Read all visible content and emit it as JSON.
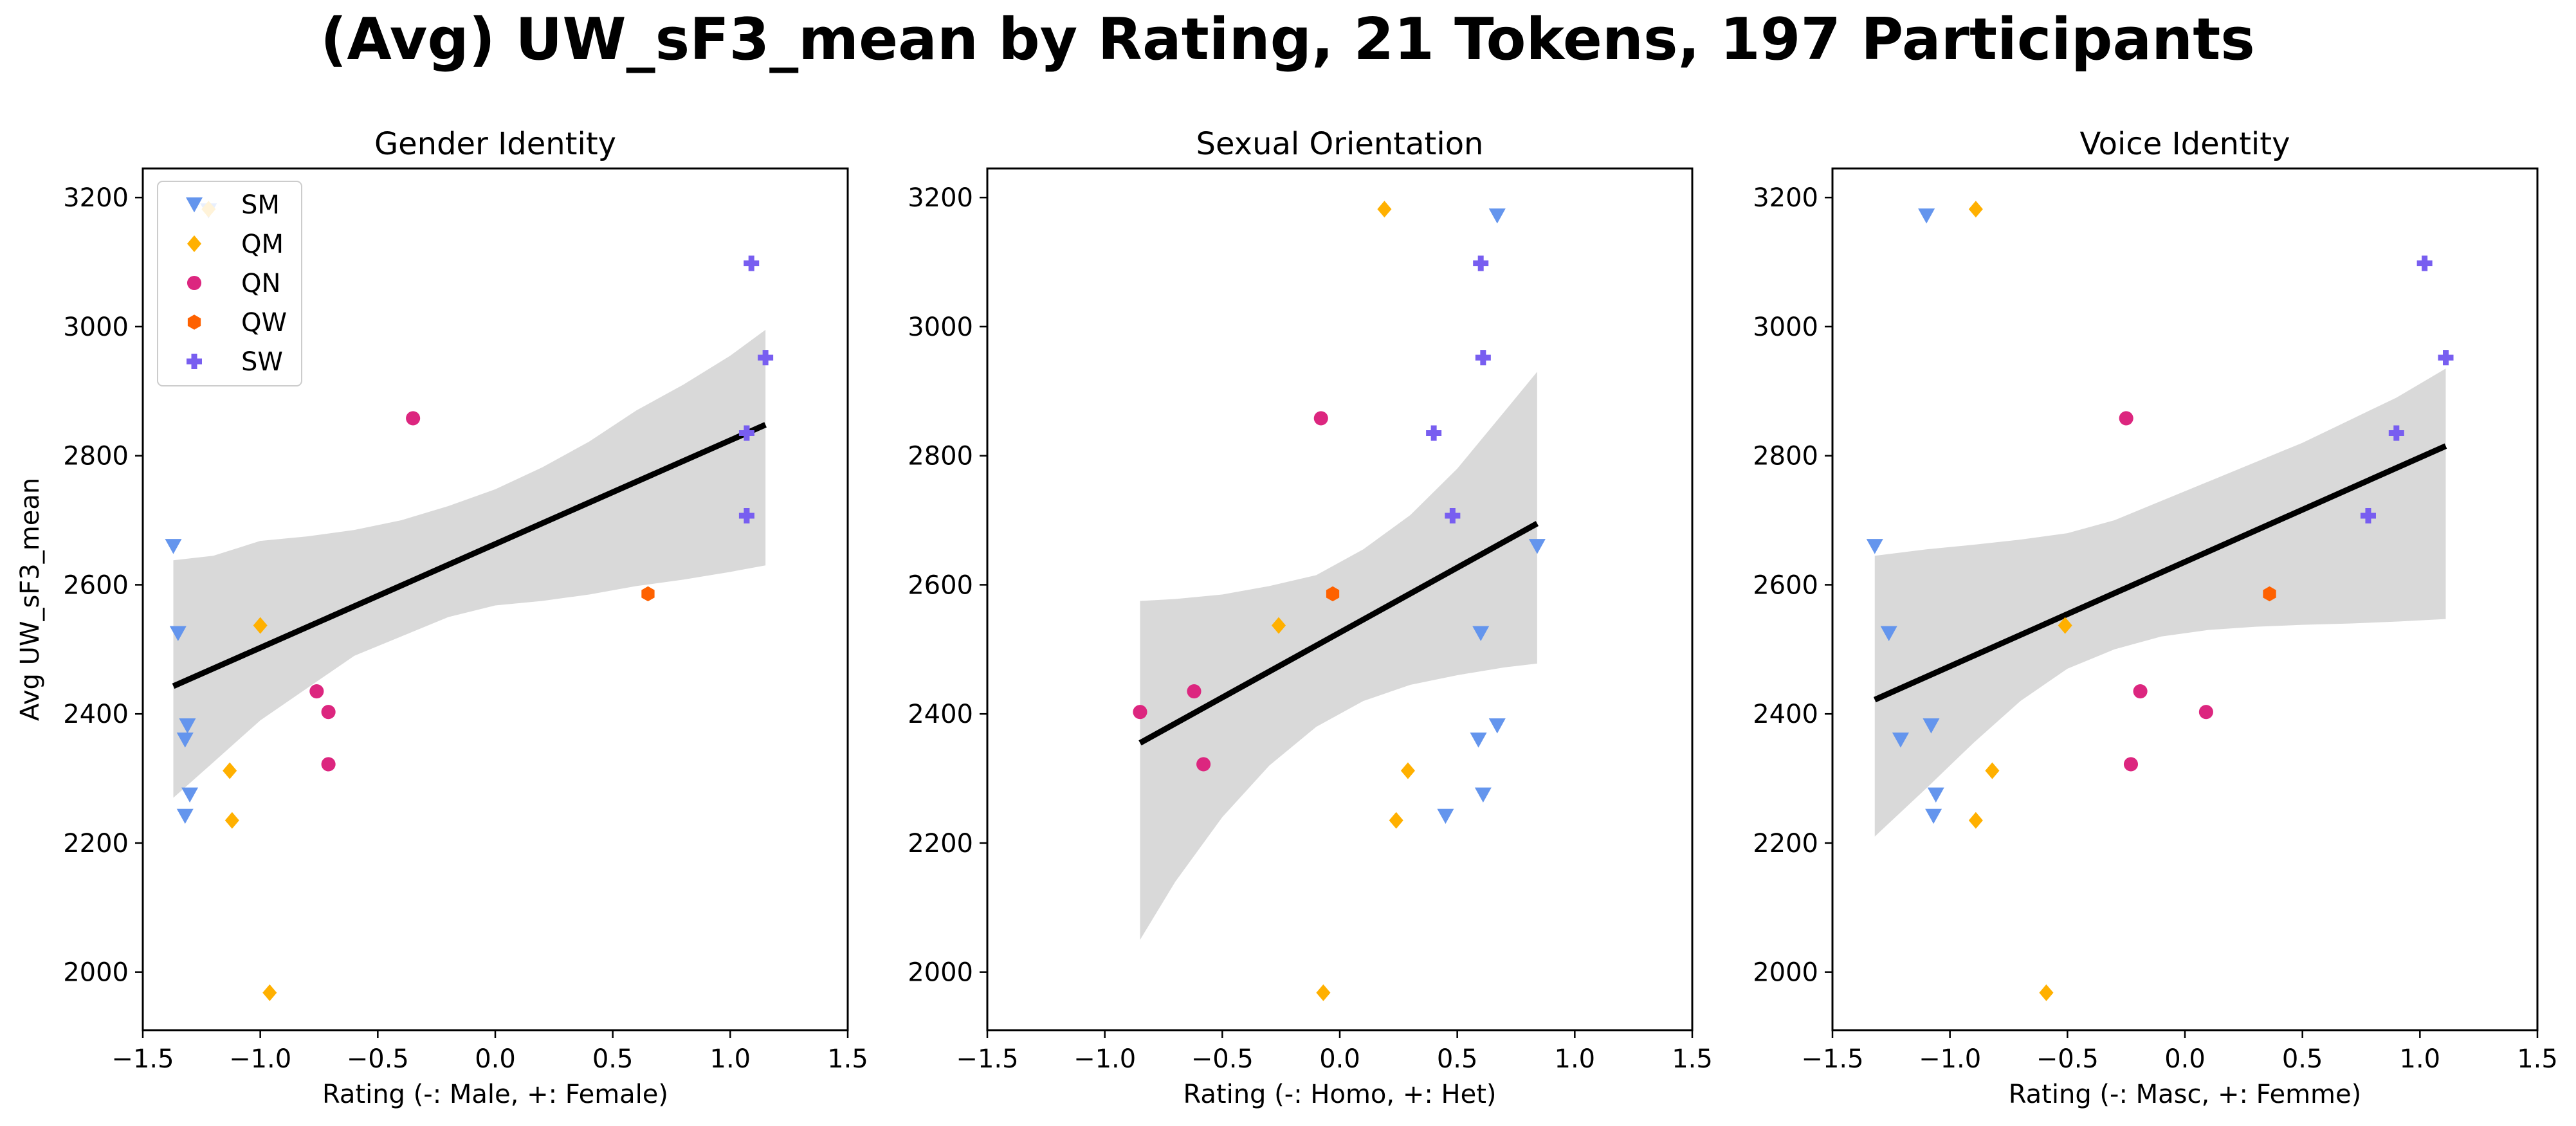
{
  "figure": {
    "title": "(Avg) UW_sF3_mean by Rating, 21 Tokens, 197 Participants"
  },
  "styles": {
    "SM": {
      "color": "#6495ED",
      "marker": "triangle-down"
    },
    "QM": {
      "color": "#FFB000",
      "marker": "diamond"
    },
    "QN": {
      "color": "#DC267F",
      "marker": "circle"
    },
    "QW": {
      "color": "#FE6100",
      "marker": "hexagon"
    },
    "SW": {
      "color": "#785EF0",
      "marker": "plus"
    },
    "regression_line": "#000000",
    "confidence_band": "#D9D9D9"
  },
  "legend": {
    "placement": "top-left",
    "panel": 0,
    "entries": [
      "SM",
      "QM",
      "QN",
      "QW",
      "SW"
    ]
  },
  "chart_data": [
    {
      "type": "scatter",
      "title": "Gender Identity",
      "xlabel": "Rating (-: Male, +: Female)",
      "ylabel": "Avg UW_sF3_mean",
      "xlim": [
        -1.5,
        1.5
      ],
      "ylim": [
        1910,
        3245
      ],
      "xticks": [
        "−1.5",
        "−1.0",
        "−0.5",
        "0.0",
        "0.5",
        "1.0",
        "1.5"
      ],
      "xtick_values": [
        -1.5,
        -1.0,
        -0.5,
        0.0,
        0.5,
        1.0,
        1.5
      ],
      "yticks": [
        "2000",
        "2200",
        "2400",
        "2600",
        "2800",
        "3000",
        "3200"
      ],
      "ytick_values": [
        2000,
        2200,
        2400,
        2600,
        2800,
        3000,
        3200
      ],
      "series": [
        {
          "name": "SM",
          "points": [
            [
              -1.37,
              2660
            ],
            [
              -1.35,
              2525
            ],
            [
              -1.31,
              2382
            ],
            [
              -1.32,
              2360
            ],
            [
              -1.3,
              2275
            ],
            [
              -1.32,
              2242
            ],
            [
              -1.22,
              3180
            ]
          ]
        },
        {
          "name": "QM",
          "points": [
            [
              -1.0,
              2537
            ],
            [
              -1.13,
              2312
            ],
            [
              -1.12,
              2235
            ],
            [
              -0.96,
              1968
            ],
            [
              -1.22,
              3182
            ]
          ]
        },
        {
          "name": "QN",
          "points": [
            [
              -0.35,
              2858
            ],
            [
              -0.76,
              2435
            ],
            [
              -0.71,
              2403
            ],
            [
              -0.71,
              2322
            ]
          ]
        },
        {
          "name": "QW",
          "points": [
            [
              0.65,
              2586
            ]
          ]
        },
        {
          "name": "SW",
          "points": [
            [
              1.09,
              3098
            ],
            [
              1.15,
              2952
            ],
            [
              1.07,
              2835
            ],
            [
              1.07,
              2707
            ]
          ]
        }
      ],
      "regression": {
        "x": [
          -1.37,
          1.15
        ],
        "y": [
          2443,
          2848
        ]
      },
      "ci_upper": [
        [
          -1.37,
          2638
        ],
        [
          -1.2,
          2645
        ],
        [
          -1.0,
          2668
        ],
        [
          -0.8,
          2675
        ],
        [
          -0.6,
          2685
        ],
        [
          -0.4,
          2700
        ],
        [
          -0.2,
          2722
        ],
        [
          0.0,
          2748
        ],
        [
          0.2,
          2782
        ],
        [
          0.4,
          2822
        ],
        [
          0.6,
          2870
        ],
        [
          0.8,
          2910
        ],
        [
          1.0,
          2955
        ],
        [
          1.15,
          2995
        ]
      ],
      "ci_lower": [
        [
          -1.37,
          2270
        ],
        [
          -1.2,
          2325
        ],
        [
          -1.0,
          2390
        ],
        [
          -0.8,
          2440
        ],
        [
          -0.6,
          2490
        ],
        [
          -0.4,
          2520
        ],
        [
          -0.2,
          2550
        ],
        [
          0.0,
          2568
        ],
        [
          0.2,
          2575
        ],
        [
          0.4,
          2585
        ],
        [
          0.6,
          2598
        ],
        [
          0.8,
          2608
        ],
        [
          1.0,
          2620
        ],
        [
          1.15,
          2630
        ]
      ]
    },
    {
      "type": "scatter",
      "title": "Sexual Orientation",
      "xlabel": "Rating (-: Homo, +: Het)",
      "ylabel": "",
      "xlim": [
        -1.5,
        1.5
      ],
      "ylim": [
        1910,
        3245
      ],
      "xticks": [
        "−1.5",
        "−1.0",
        "−0.5",
        "0.0",
        "0.5",
        "1.0",
        "1.5"
      ],
      "xtick_values": [
        -1.5,
        -1.0,
        -0.5,
        0.0,
        0.5,
        1.0,
        1.5
      ],
      "yticks": [
        "2000",
        "2200",
        "2400",
        "2600",
        "2800",
        "3000",
        "3200"
      ],
      "ytick_values": [
        2000,
        2200,
        2400,
        2600,
        2800,
        3000,
        3200
      ],
      "series": [
        {
          "name": "SM",
          "points": [
            [
              0.67,
              3172
            ],
            [
              0.84,
              2660
            ],
            [
              0.6,
              2525
            ],
            [
              0.67,
              2382
            ],
            [
              0.59,
              2360
            ],
            [
              0.61,
              2275
            ],
            [
              0.45,
              2242
            ]
          ]
        },
        {
          "name": "QM",
          "points": [
            [
              0.19,
              3182
            ],
            [
              -0.26,
              2537
            ],
            [
              0.29,
              2312
            ],
            [
              0.24,
              2235
            ],
            [
              -0.07,
              1968
            ]
          ]
        },
        {
          "name": "QN",
          "points": [
            [
              -0.08,
              2858
            ],
            [
              -0.85,
              2403
            ],
            [
              -0.62,
              2435
            ],
            [
              -0.58,
              2322
            ]
          ]
        },
        {
          "name": "QW",
          "points": [
            [
              -0.03,
              2586
            ]
          ]
        },
        {
          "name": "SW",
          "points": [
            [
              0.6,
              3098
            ],
            [
              0.61,
              2952
            ],
            [
              0.4,
              2835
            ],
            [
              0.48,
              2707
            ]
          ]
        }
      ],
      "regression": {
        "x": [
          -0.85,
          0.84
        ],
        "y": [
          2355,
          2695
        ]
      },
      "ci_upper": [
        [
          -0.85,
          2575
        ],
        [
          -0.7,
          2578
        ],
        [
          -0.5,
          2585
        ],
        [
          -0.3,
          2598
        ],
        [
          -0.1,
          2615
        ],
        [
          0.1,
          2655
        ],
        [
          0.3,
          2708
        ],
        [
          0.5,
          2780
        ],
        [
          0.7,
          2868
        ],
        [
          0.84,
          2930
        ]
      ],
      "ci_lower": [
        [
          -0.85,
          2050
        ],
        [
          -0.7,
          2140
        ],
        [
          -0.5,
          2240
        ],
        [
          -0.3,
          2320
        ],
        [
          -0.1,
          2380
        ],
        [
          0.1,
          2420
        ],
        [
          0.3,
          2445
        ],
        [
          0.5,
          2460
        ],
        [
          0.7,
          2472
        ],
        [
          0.84,
          2478
        ]
      ]
    },
    {
      "type": "scatter",
      "title": "Voice Identity",
      "xlabel": "Rating (-: Masc, +: Femme)",
      "ylabel": "",
      "xlim": [
        -1.5,
        1.5
      ],
      "ylim": [
        1910,
        3245
      ],
      "xticks": [
        "−1.5",
        "−1.0",
        "−0.5",
        "0.0",
        "0.5",
        "1.0",
        "1.5"
      ],
      "xtick_values": [
        -1.5,
        -1.0,
        -0.5,
        0.0,
        0.5,
        1.0,
        1.5
      ],
      "yticks": [
        "2000",
        "2200",
        "2400",
        "2600",
        "2800",
        "3000",
        "3200"
      ],
      "ytick_values": [
        2000,
        2200,
        2400,
        2600,
        2800,
        3000,
        3200
      ],
      "series": [
        {
          "name": "SM",
          "points": [
            [
              -1.1,
              3172
            ],
            [
              -1.32,
              2660
            ],
            [
              -1.26,
              2525
            ],
            [
              -1.08,
              2382
            ],
            [
              -1.21,
              2360
            ],
            [
              -1.06,
              2275
            ],
            [
              -1.07,
              2242
            ]
          ]
        },
        {
          "name": "QM",
          "points": [
            [
              -0.89,
              3182
            ],
            [
              -0.51,
              2537
            ],
            [
              -0.82,
              2312
            ],
            [
              -0.89,
              2235
            ],
            [
              -0.59,
              1968
            ]
          ]
        },
        {
          "name": "QN",
          "points": [
            [
              -0.25,
              2858
            ],
            [
              -0.19,
              2435
            ],
            [
              0.09,
              2403
            ],
            [
              -0.23,
              2322
            ]
          ]
        },
        {
          "name": "QW",
          "points": [
            [
              0.36,
              2586
            ]
          ]
        },
        {
          "name": "SW",
          "points": [
            [
              1.02,
              3098
            ],
            [
              1.11,
              2952
            ],
            [
              0.9,
              2835
            ],
            [
              0.78,
              2707
            ]
          ]
        }
      ],
      "regression": {
        "x": [
          -1.32,
          1.11
        ],
        "y": [
          2422,
          2815
        ]
      },
      "ci_upper": [
        [
          -1.32,
          2645
        ],
        [
          -1.1,
          2655
        ],
        [
          -0.9,
          2662
        ],
        [
          -0.7,
          2670
        ],
        [
          -0.5,
          2680
        ],
        [
          -0.3,
          2700
        ],
        [
          -0.1,
          2730
        ],
        [
          0.1,
          2760
        ],
        [
          0.3,
          2790
        ],
        [
          0.5,
          2820
        ],
        [
          0.7,
          2855
        ],
        [
          0.9,
          2890
        ],
        [
          1.11,
          2935
        ]
      ],
      "ci_lower": [
        [
          -1.32,
          2210
        ],
        [
          -1.1,
          2285
        ],
        [
          -0.9,
          2355
        ],
        [
          -0.7,
          2420
        ],
        [
          -0.5,
          2470
        ],
        [
          -0.3,
          2500
        ],
        [
          -0.1,
          2520
        ],
        [
          0.1,
          2530
        ],
        [
          0.3,
          2535
        ],
        [
          0.5,
          2538
        ],
        [
          0.7,
          2540
        ],
        [
          0.9,
          2543
        ],
        [
          1.11,
          2547
        ]
      ]
    }
  ]
}
